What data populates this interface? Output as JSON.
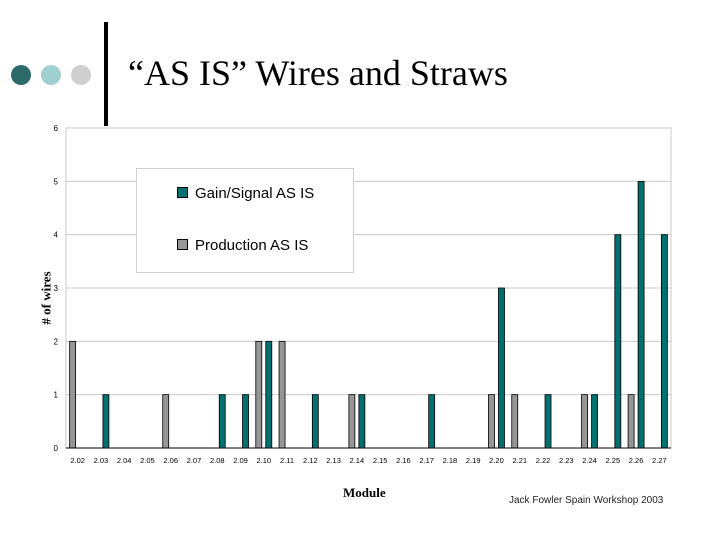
{
  "slide": {
    "title": "“AS IS” Wires and Straws",
    "footer": "Jack Fowler Spain Workshop 2003"
  },
  "decor": {
    "dot_colors": [
      "#2e6a6a",
      "#9fcfcf",
      "#cfcfcf"
    ]
  },
  "chart_data": {
    "type": "bar",
    "title": "",
    "xlabel": "Module",
    "ylabel": "# of wires",
    "ylim": [
      0,
      6
    ],
    "yticks": [
      0,
      1,
      2,
      3,
      4,
      5,
      6
    ],
    "grid": true,
    "legend_position": "upper-left",
    "categories": [
      "2.02",
      "2.03",
      "2.04",
      "2.05",
      "2.06",
      "2.07",
      "2.08",
      "2.09",
      "2.10",
      "2.11",
      "2.12",
      "2.13",
      "2.14",
      "2.15",
      "2.16",
      "2.17",
      "2.18",
      "2.19",
      "2.20",
      "2.21",
      "2.22",
      "2.23",
      "2.24",
      "2.25",
      "2.26",
      "2.27"
    ],
    "series": [
      {
        "name": "Gain/Signal AS IS",
        "color": "#007070",
        "values": [
          0,
          1,
          0,
          0,
          0,
          0,
          1,
          1,
          2,
          0,
          1,
          0,
          1,
          0,
          0,
          1,
          0,
          0,
          3,
          0,
          1,
          0,
          1,
          4,
          5,
          4
        ]
      },
      {
        "name": "Production AS IS",
        "color": "#969696",
        "values": [
          2,
          0,
          0,
          0,
          1,
          0,
          0,
          0,
          2,
          2,
          0,
          0,
          1,
          0,
          0,
          0,
          0,
          0,
          1,
          1,
          0,
          0,
          1,
          0,
          1,
          0
        ]
      }
    ]
  }
}
